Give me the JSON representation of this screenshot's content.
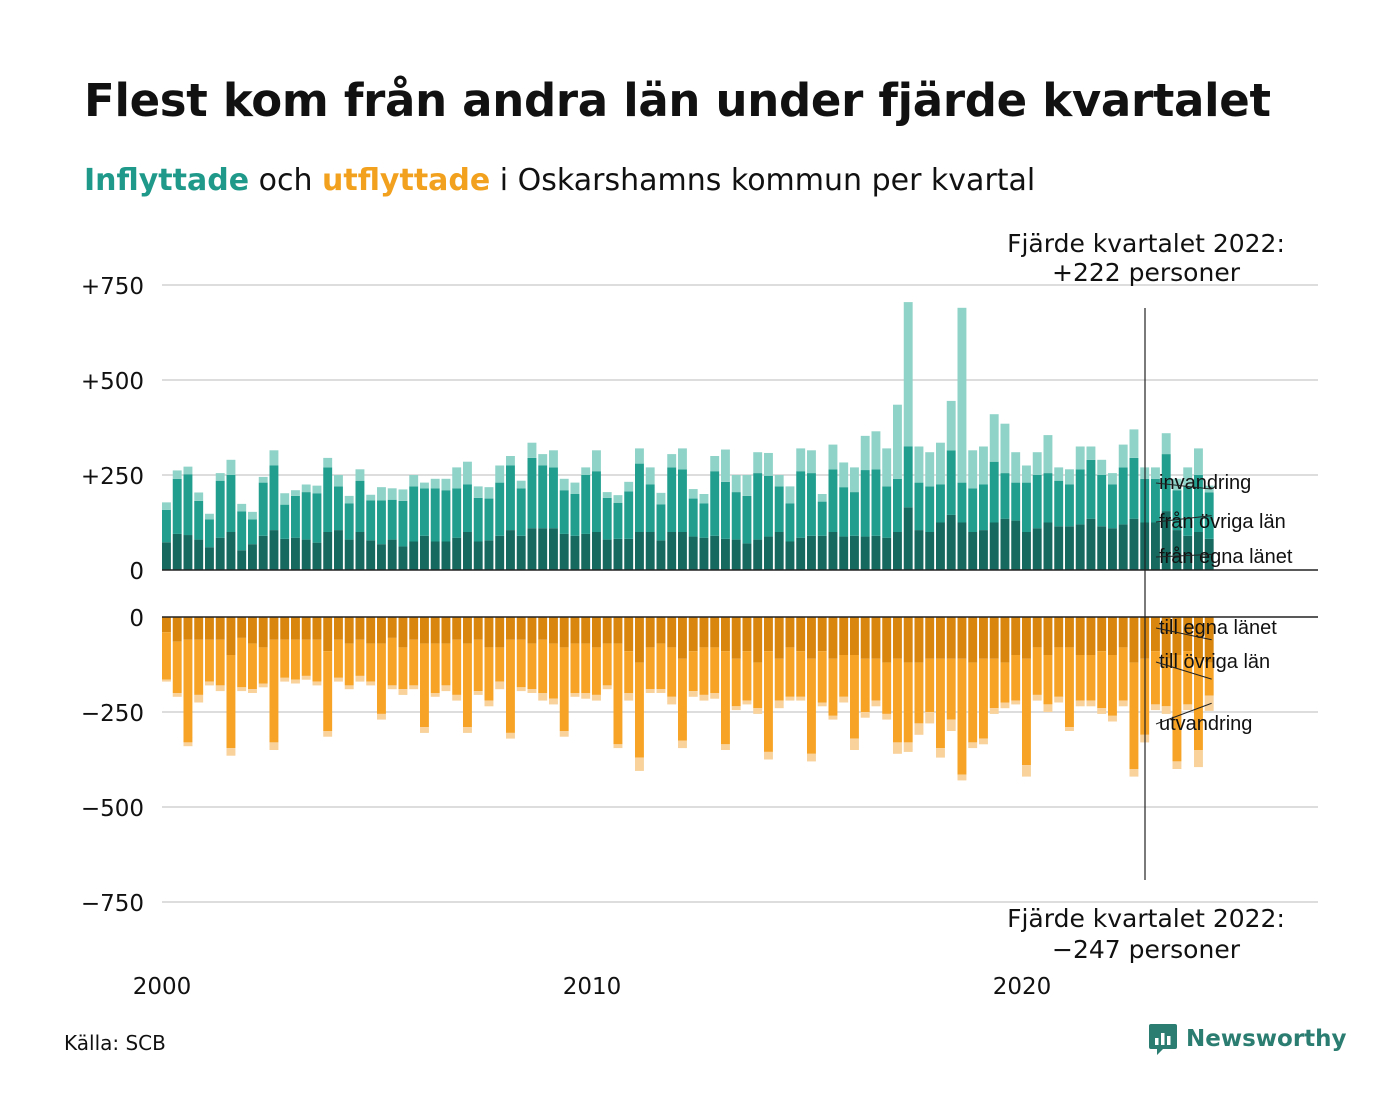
{
  "header": {
    "title": "Flest kom från andra län under fjärde kvartalet",
    "subtitle_in": "Inflyttade",
    "subtitle_mid": " och ",
    "subtitle_out": "utflyttade",
    "subtitle_rest": " i Oskarshamns kommun per kvartal"
  },
  "colors": {
    "in_own": "#15695f",
    "in_other": "#219e8e",
    "in_immig": "#8fd3c8",
    "out_own": "#d9860f",
    "out_other": "#f7a325",
    "out_emig": "#f8d19b",
    "grid": "#dddddd",
    "text": "#111111"
  },
  "annotations": {
    "top_line1": "Fjärde kvartalet 2022:",
    "top_line2": "+222 personer",
    "bottom_line1": "Fjärde kvartalet 2022:",
    "bottom_line2": "−247 personer"
  },
  "footer": {
    "source": "Källa: SCB",
    "brand": "Newsworthy",
    "brand_icon": "newsworthy-logo-icon"
  },
  "chart_data": {
    "type": "bar",
    "stacked": true,
    "diverging": true,
    "x_start": 2000.0,
    "x_step": 0.25,
    "x_ticks": [
      {
        "value": 2000,
        "label": "2000"
      },
      {
        "value": 2010,
        "label": "2010"
      },
      {
        "value": 2020,
        "label": "2020"
      }
    ],
    "upper_y_ticks": [
      {
        "value": 750,
        "label": "+750"
      },
      {
        "value": 500,
        "label": "+500"
      },
      {
        "value": 250,
        "label": "+250"
      },
      {
        "value": 0,
        "label": "0"
      }
    ],
    "lower_y_ticks": [
      {
        "value": 0,
        "label": "0"
      },
      {
        "value": -250,
        "label": "−250"
      },
      {
        "value": -500,
        "label": "−500"
      },
      {
        "value": -750,
        "label": "−750"
      }
    ],
    "ylim_upper": [
      0,
      750
    ],
    "ylim_lower": [
      -750,
      0
    ],
    "series_in": [
      {
        "name": "från egna länet",
        "values": [
          73,
          95,
          92,
          80,
          60,
          85,
          100,
          52,
          68,
          90,
          105,
          82,
          85,
          80,
          72,
          100,
          105,
          80,
          100,
          78,
          68,
          80,
          62,
          75,
          90,
          75,
          75,
          85,
          100,
          75,
          78,
          90,
          105,
          90,
          110,
          110,
          110,
          95,
          90,
          95,
          100,
          80,
          82,
          82,
          100,
          100,
          78,
          100,
          100,
          88,
          85,
          90,
          82,
          80,
          70,
          80,
          88,
          100,
          75,
          85,
          90,
          90,
          100,
          88,
          90,
          88,
          90,
          85,
          100,
          165,
          105,
          100,
          125,
          145,
          125,
          100,
          105,
          125,
          135,
          130,
          100,
          110,
          125,
          115,
          115,
          120,
          135,
          115,
          110,
          120,
          135,
          125,
          125,
          155,
          105,
          90,
          100,
          82
        ]
      },
      {
        "name": "från övriga län",
        "values": [
          85,
          145,
          160,
          102,
          73,
          150,
          150,
          102,
          65,
          140,
          170,
          90,
          110,
          125,
          130,
          170,
          115,
          95,
          135,
          105,
          115,
          105,
          120,
          145,
          125,
          140,
          135,
          130,
          125,
          115,
          110,
          140,
          170,
          125,
          185,
          165,
          160,
          115,
          110,
          155,
          160,
          110,
          95,
          125,
          180,
          125,
          95,
          170,
          165,
          100,
          90,
          170,
          150,
          125,
          125,
          175,
          160,
          120,
          100,
          175,
          165,
          90,
          165,
          130,
          115,
          175,
          175,
          135,
          140,
          160,
          125,
          120,
          100,
          170,
          105,
          115,
          120,
          160,
          120,
          100,
          130,
          140,
          130,
          120,
          110,
          145,
          155,
          135,
          115,
          150,
          160,
          115,
          115,
          150,
          105,
          130,
          150,
          122
        ]
      },
      {
        "name": "invandring",
        "values": [
          20,
          22,
          20,
          22,
          15,
          20,
          40,
          20,
          20,
          15,
          40,
          30,
          15,
          20,
          20,
          25,
          30,
          20,
          30,
          15,
          35,
          30,
          30,
          30,
          15,
          25,
          30,
          55,
          60,
          30,
          30,
          45,
          25,
          20,
          40,
          30,
          45,
          30,
          30,
          20,
          55,
          15,
          20,
          25,
          40,
          45,
          30,
          35,
          55,
          25,
          25,
          40,
          85,
          45,
          55,
          55,
          60,
          30,
          45,
          60,
          60,
          20,
          65,
          65,
          65,
          90,
          100,
          100,
          195,
          380,
          95,
          90,
          110,
          130,
          460,
          100,
          100,
          125,
          130,
          80,
          45,
          60,
          100,
          35,
          40,
          60,
          35,
          40,
          30,
          60,
          75,
          30,
          30,
          55,
          30,
          50,
          70,
          18
        ]
      }
    ],
    "series_out": [
      {
        "name": "till egna länet",
        "values": [
          -40,
          -65,
          -60,
          -60,
          -60,
          -60,
          -100,
          -55,
          -70,
          -80,
          -60,
          -60,
          -60,
          -60,
          -60,
          -90,
          -60,
          -70,
          -60,
          -70,
          -70,
          -55,
          -80,
          -60,
          -70,
          -70,
          -70,
          -60,
          -70,
          -60,
          -80,
          -80,
          -60,
          -60,
          -70,
          -60,
          -70,
          -80,
          -70,
          -70,
          -80,
          -70,
          -70,
          -90,
          -120,
          -80,
          -70,
          -80,
          -110,
          -90,
          -80,
          -80,
          -90,
          -110,
          -90,
          -120,
          -90,
          -110,
          -80,
          -90,
          -110,
          -90,
          -110,
          -100,
          -100,
          -110,
          -110,
          -120,
          -110,
          -120,
          -120,
          -110,
          -110,
          -110,
          -110,
          -120,
          -110,
          -110,
          -120,
          -100,
          -110,
          -80,
          -100,
          -80,
          -80,
          -100,
          -100,
          -90,
          -100,
          -80,
          -120,
          -110,
          -90,
          -110,
          -100,
          -90,
          -110,
          -120
        ]
      },
      {
        "name": "till övriga län",
        "values": [
          -125,
          -135,
          -270,
          -145,
          -110,
          -120,
          -245,
          -130,
          -120,
          -95,
          -270,
          -100,
          -105,
          -95,
          -110,
          -210,
          -100,
          -110,
          -95,
          -100,
          -185,
          -125,
          -110,
          -120,
          -220,
          -130,
          -110,
          -145,
          -220,
          -135,
          -140,
          -90,
          -245,
          -125,
          -120,
          -140,
          -145,
          -220,
          -130,
          -130,
          -125,
          -110,
          -265,
          -110,
          -250,
          -110,
          -120,
          -130,
          -215,
          -105,
          -125,
          -120,
          -245,
          -125,
          -130,
          -120,
          -265,
          -110,
          -130,
          -120,
          -250,
          -135,
          -150,
          -110,
          -220,
          -140,
          -110,
          -135,
          -220,
          -210,
          -160,
          -140,
          -235,
          -160,
          -305,
          -210,
          -210,
          -130,
          -105,
          -120,
          -280,
          -125,
          -130,
          -130,
          -210,
          -120,
          -120,
          -150,
          -160,
          -140,
          -280,
          -200,
          -140,
          -125,
          -280,
          -140,
          -240,
          -87
        ]
      },
      {
        "name": "utvandring",
        "values": [
          -5,
          -10,
          -10,
          -20,
          -10,
          -15,
          -20,
          -10,
          -10,
          -10,
          -20,
          -10,
          -10,
          -10,
          -10,
          -15,
          -10,
          -10,
          -15,
          -10,
          -15,
          -10,
          -15,
          -10,
          -15,
          -10,
          -15,
          -15,
          -15,
          -10,
          -15,
          -20,
          -15,
          -10,
          -10,
          -20,
          -15,
          -15,
          -10,
          -15,
          -15,
          -10,
          -10,
          -20,
          -35,
          -10,
          -10,
          -20,
          -20,
          -15,
          -15,
          -15,
          -15,
          -10,
          -10,
          -15,
          -20,
          -20,
          -10,
          -10,
          -20,
          -10,
          -10,
          -15,
          -30,
          -15,
          -15,
          -15,
          -30,
          -25,
          -30,
          -30,
          -25,
          -30,
          -15,
          -15,
          -15,
          -15,
          -15,
          -10,
          -30,
          -15,
          -20,
          -15,
          -10,
          -15,
          -15,
          -15,
          -15,
          -15,
          -20,
          -20,
          -15,
          -20,
          -20,
          -15,
          -45,
          -40
        ]
      }
    ]
  }
}
